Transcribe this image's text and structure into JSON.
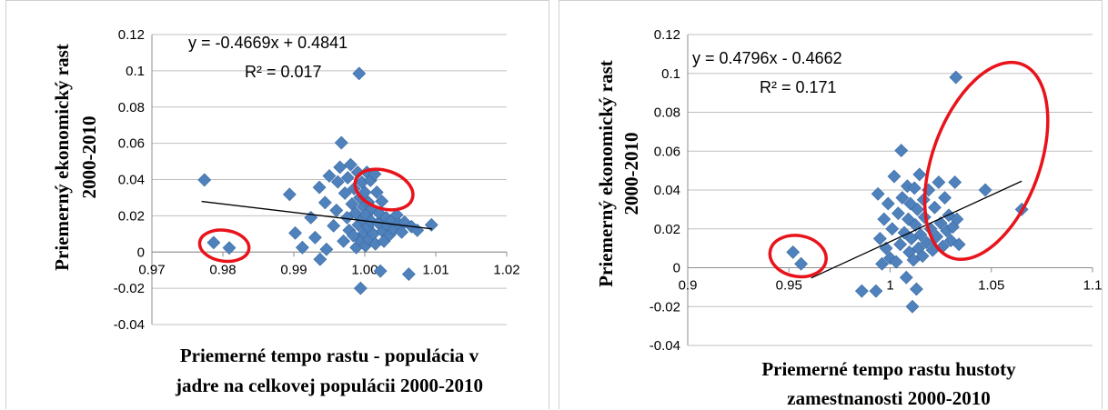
{
  "chart_data": [
    {
      "type": "scatter",
      "title": "",
      "xlabel_lines": [
        "Priemerné tempo rastu - populácia v",
        "jadre na celkovej populácii 2000-2010"
      ],
      "ylabel_lines": [
        "Priemerný ekonomický rast",
        "2000-2010"
      ],
      "xlim": [
        0.97,
        1.02
      ],
      "ylim": [
        -0.04,
        0.12
      ],
      "xticks": [
        "0.97",
        "0.98",
        "0.99",
        "1.00",
        "1.01",
        "1.02"
      ],
      "xtick_values": [
        0.97,
        0.98,
        0.99,
        1.0,
        1.01,
        1.02
      ],
      "yticks": [
        "-0.04",
        "-0.02",
        "0",
        "0.02",
        "0.04",
        "0.06",
        "0.08",
        "0.1",
        "0.12"
      ],
      "ytick_values": [
        -0.04,
        -0.02,
        0,
        0.02,
        0.04,
        0.06,
        0.08,
        0.1,
        0.12
      ],
      "grid": "horizontal",
      "equation": "y = -0.4669x + 0.4841",
      "r_squared": "R² = 0.017",
      "trendline": {
        "slope": -0.4669,
        "intercept": 0.4841,
        "x_range": [
          0.977,
          1.0095
        ]
      },
      "marker_color": "#4f81bd",
      "highlight_color": "#e8131b",
      "highlight_ellipses": [
        {
          "center": [
            0.9802,
            0.0035
          ],
          "rx": 0.0035,
          "ry": 0.0085,
          "angle_deg": 8
        },
        {
          "center": [
            1.0027,
            0.0345
          ],
          "rx": 0.0042,
          "ry": 0.0105,
          "angle_deg": 18
        }
      ],
      "points": [
        [
          0.9774,
          0.0398
        ],
        [
          0.9787,
          0.0052
        ],
        [
          0.9809,
          0.0023
        ],
        [
          0.9894,
          0.0318
        ],
        [
          0.9902,
          0.0105
        ],
        [
          0.9912,
          0.0025
        ],
        [
          0.9924,
          0.019
        ],
        [
          0.9936,
          0.0357
        ],
        [
          0.993,
          0.008
        ],
        [
          0.9937,
          -0.004
        ],
        [
          0.9944,
          0.0273
        ],
        [
          0.9946,
          0.0015
        ],
        [
          0.995,
          0.042
        ],
        [
          0.9956,
          0.0145
        ],
        [
          0.996,
          0.023
        ],
        [
          0.9962,
          0.0387
        ],
        [
          0.9965,
          0.0468
        ],
        [
          0.9967,
          0.0603
        ],
        [
          0.997,
          0.006
        ],
        [
          0.9972,
          0.0325
        ],
        [
          0.9975,
          0.019
        ],
        [
          0.9976,
          0.041
        ],
        [
          0.9978,
          0.012
        ],
        [
          0.998,
          0.0482
        ],
        [
          0.9982,
          0.0265
        ],
        [
          0.9984,
          0.009
        ],
        [
          0.9985,
          0.035
        ],
        [
          0.9987,
          0.0215
        ],
        [
          0.9988,
          0.0025
        ],
        [
          0.999,
          0.044
        ],
        [
          0.9991,
          0.015
        ],
        [
          0.9992,
          0.0985
        ],
        [
          0.9993,
          0.03
        ],
        [
          0.9994,
          -0.02
        ],
        [
          0.9995,
          0.006
        ],
        [
          0.9996,
          0.0385
        ],
        [
          0.9997,
          0.018
        ],
        [
          0.9998,
          0.025
        ],
        [
          0.9999,
          0.0105
        ],
        [
          1.0,
          0.033
        ],
        [
          1.0001,
          0.0035
        ],
        [
          1.0002,
          0.0205
        ],
        [
          1.0003,
          0.044
        ],
        [
          1.0004,
          0.014
        ],
        [
          1.0005,
          0.0275
        ],
        [
          1.0006,
          0.007
        ],
        [
          1.0008,
          0.0395
        ],
        [
          1.0009,
          0.017
        ],
        [
          1.001,
          0.024
        ],
        [
          1.0012,
          0.01
        ],
        [
          1.0014,
          0.043
        ],
        [
          1.0015,
          0.0045
        ],
        [
          1.0017,
          0.033
        ],
        [
          1.0019,
          0.016
        ],
        [
          1.002,
          0.0215
        ],
        [
          1.0022,
          -0.0105
        ],
        [
          1.0024,
          0.028
        ],
        [
          1.0025,
          0.0115
        ],
        [
          1.0027,
          0.006
        ],
        [
          1.003,
          0.019
        ],
        [
          1.0032,
          0.0145
        ],
        [
          1.0035,
          0.0095
        ],
        [
          1.0038,
          0.0175
        ],
        [
          1.0041,
          0.0125
        ],
        [
          1.0045,
          0.0205
        ],
        [
          1.0048,
          0.0155
        ],
        [
          1.0052,
          0.011
        ],
        [
          1.0056,
          0.0165
        ],
        [
          1.0062,
          -0.0122
        ],
        [
          1.0066,
          0.014
        ],
        [
          1.0074,
          0.012
        ],
        [
          1.0094,
          0.015
        ]
      ]
    },
    {
      "type": "scatter",
      "title": "",
      "xlabel_lines": [
        "Priemerné tempo rastu hustoty",
        "zamestnanosti 2000-2010"
      ],
      "ylabel_lines": [
        "Priemerný ekonomický rast",
        "2000-2010"
      ],
      "xlim": [
        0.9,
        1.1
      ],
      "ylim": [
        -0.04,
        0.12
      ],
      "xticks": [
        "0.9",
        "0.95",
        "1",
        "1.05",
        "1.1"
      ],
      "xtick_values": [
        0.9,
        0.95,
        1.0,
        1.05,
        1.1
      ],
      "yticks": [
        "-0.04",
        "-0.02",
        "0",
        "0.02",
        "0.04",
        "0.06",
        "0.08",
        "0.1",
        "0.12"
      ],
      "ytick_values": [
        -0.04,
        -0.02,
        0,
        0.02,
        0.04,
        0.06,
        0.08,
        0.1,
        0.12
      ],
      "grid": "horizontal",
      "equation": "y = 0.4796x - 0.4662",
      "r_squared": "R² = 0.171",
      "trendline": {
        "slope": 0.4796,
        "intercept": -0.4662,
        "x_range": [
          0.961,
          1.065
        ]
      },
      "marker_color": "#4f81bd",
      "highlight_color": "#e8131b",
      "highlight_ellipses": [
        {
          "center": [
            0.9545,
            0.006
          ],
          "rx": 0.014,
          "ry": 0.0105,
          "angle_deg": 10
        },
        {
          "center": [
            1.0475,
            0.055
          ],
          "rx": 0.0265,
          "ry": 0.053,
          "angle_deg": 20
        }
      ],
      "points": [
        [
          0.952,
          0.008
        ],
        [
          0.956,
          0.002
        ],
        [
          0.986,
          -0.012
        ],
        [
          0.993,
          -0.012
        ],
        [
          0.994,
          0.038
        ],
        [
          0.995,
          0.015
        ],
        [
          0.996,
          0.002
        ],
        [
          0.997,
          0.025
        ],
        [
          0.998,
          0.01
        ],
        [
          0.999,
          0.033
        ],
        [
          1.0,
          0.005
        ],
        [
          1.001,
          0.02
        ],
        [
          1.002,
          0.047
        ],
        [
          1.003,
          0.003
        ],
        [
          1.004,
          0.028
        ],
        [
          1.005,
          0.012
        ],
        [
          1.0055,
          0.0603
        ],
        [
          1.006,
          0.036
        ],
        [
          1.007,
          0.018
        ],
        [
          1.008,
          -0.005
        ],
        [
          1.0085,
          0.042
        ],
        [
          1.009,
          0.025
        ],
        [
          1.0095,
          0.008
        ],
        [
          1.01,
          0.033
        ],
        [
          1.0105,
          0.015
        ],
        [
          1.011,
          -0.02
        ],
        [
          1.0115,
          0.004
        ],
        [
          1.012,
          0.041
        ],
        [
          1.0125,
          0.022
        ],
        [
          1.013,
          -0.011
        ],
        [
          1.0135,
          0.03
        ],
        [
          1.014,
          0.01
        ],
        [
          1.0145,
          0.048
        ],
        [
          1.015,
          0.017
        ],
        [
          1.016,
          0.006
        ],
        [
          1.0165,
          0.035
        ],
        [
          1.017,
          0.026
        ],
        [
          1.018,
          0.013
        ],
        [
          1.019,
          0.04
        ],
        [
          1.02,
          0.02
        ],
        [
          1.021,
          0.009
        ],
        [
          1.022,
          0.031
        ],
        [
          1.023,
          0.016
        ],
        [
          1.024,
          0.044
        ],
        [
          1.025,
          0.023
        ],
        [
          1.026,
          0.011
        ],
        [
          1.027,
          0.036
        ],
        [
          1.028,
          0.019
        ],
        [
          1.029,
          0.027
        ],
        [
          1.03,
          0.014
        ],
        [
          1.031,
          0.021
        ],
        [
          1.032,
          0.044
        ],
        [
          1.0325,
          0.098
        ],
        [
          1.033,
          0.025
        ],
        [
          1.034,
          0.012
        ],
        [
          1.047,
          0.04
        ],
        [
          1.065,
          0.03
        ]
      ]
    }
  ]
}
